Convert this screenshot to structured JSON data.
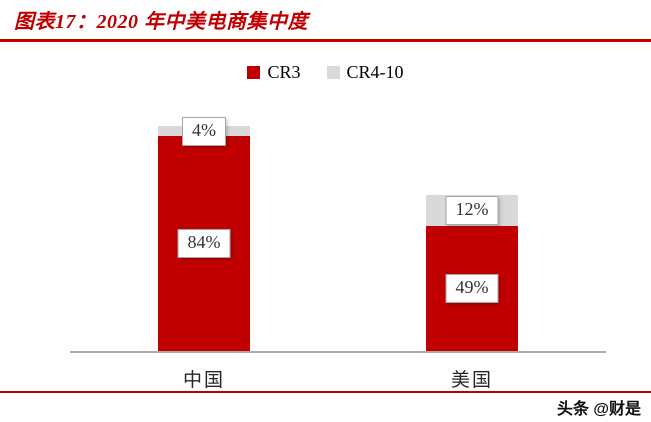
{
  "header": {
    "title": "图表17：2020 年中美电商集中度"
  },
  "chart_data": {
    "type": "bar",
    "stacked": true,
    "title": "2020 年中美电商集中度",
    "categories": [
      "中国",
      "美国"
    ],
    "series": [
      {
        "name": "CR3",
        "color": "#c00000",
        "values": [
          84,
          49
        ]
      },
      {
        "name": "CR4-10",
        "color": "#d9d9d9",
        "values": [
          4,
          12
        ]
      }
    ],
    "value_labels": {
      "cr3": [
        "84%",
        "49%"
      ],
      "cr4_10": [
        "4%",
        "12%"
      ]
    },
    "xlabel": "",
    "ylabel": "",
    "ylim": [
      0,
      100
    ],
    "grid": false,
    "legend_position": "top"
  },
  "footer": {
    "watermark": "头条 @财是"
  },
  "colors": {
    "accent": "#c00000",
    "cr3": "#c00000",
    "cr4_10": "#d9d9d9",
    "axis": "#ababab"
  }
}
